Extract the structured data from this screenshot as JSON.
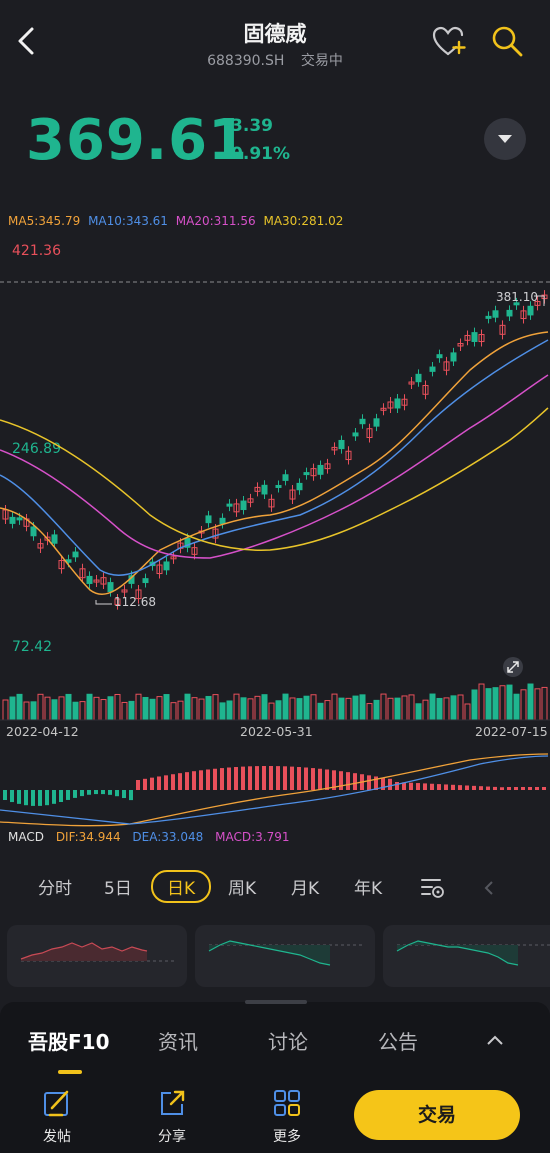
{
  "header": {
    "title": "固德威",
    "code": "688390.SH",
    "status": "交易中"
  },
  "quote": {
    "price": "369.61",
    "change": "-3.39",
    "change_pct": "-0.91%"
  },
  "ma": {
    "ma5": "MA5:345.79",
    "ma10": "MA10:343.61",
    "ma20": "MA20:311.56",
    "ma30": "MA30:281.02"
  },
  "price_axis": {
    "top": "421.36",
    "mid": "246.89",
    "high_mark": "381.10",
    "low_mark": "112.68"
  },
  "volume_axis": {
    "top": "72.42"
  },
  "dates": [
    "2022-04-12",
    "2022-05-31",
    "2022-07-15"
  ],
  "macd": {
    "name": "MACD",
    "dif": "DIF:34.944",
    "dea": "DEA:33.048",
    "macd": "MACD:3.791"
  },
  "period_tabs": [
    "分时",
    "5日",
    "日K",
    "周K",
    "月K",
    "年K"
  ],
  "active_period": "日K",
  "footer_tabs": [
    "吾股F10",
    "资讯",
    "讨论",
    "公告"
  ],
  "actions": {
    "post": "发帖",
    "share": "分享",
    "more": "更多",
    "trade": "交易"
  },
  "colors": {
    "up": "#e8505b",
    "down": "#1fb58f",
    "accent": "#f1c21b",
    "ma5": "#f0a23a",
    "ma10": "#4f8fe6",
    "ma20": "#d651c9",
    "ma30": "#e8c42a"
  }
}
